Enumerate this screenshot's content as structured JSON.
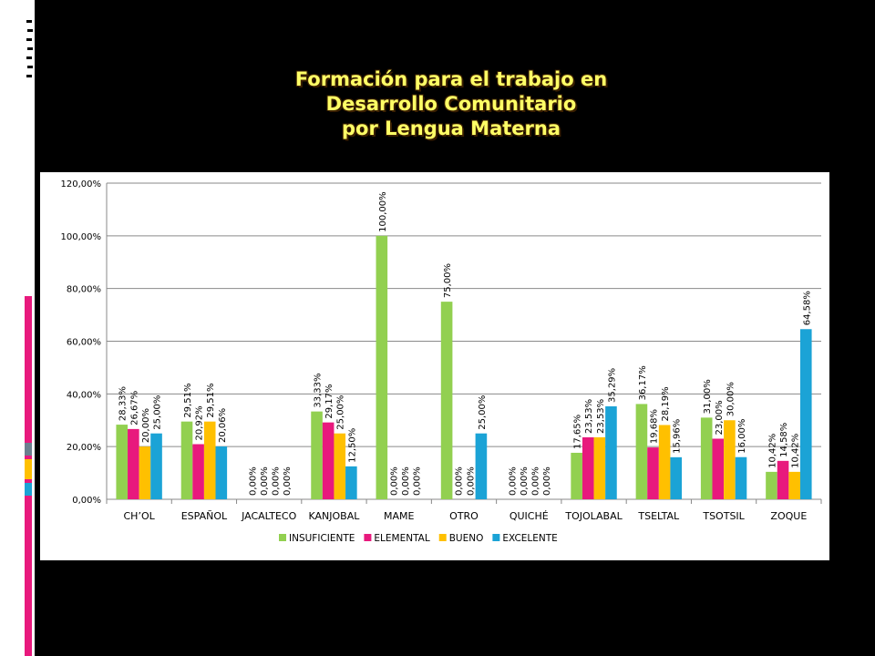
{
  "slide": {
    "title_lines": [
      "Formación para el trabajo en",
      "Desarrollo Comunitario",
      "por Lengua Materna"
    ]
  },
  "colors": {
    "background": "#000000",
    "title": "#ffff66",
    "series": [
      "#92d050",
      "#e8197d",
      "#ffc000",
      "#1ba3d6"
    ],
    "decor": [
      "#ffffff",
      "#e8197d",
      "#ffc000",
      "#1ba3d6",
      "#6b7f8f"
    ]
  },
  "chart_data": {
    "type": "bar",
    "title": "",
    "xlabel": "",
    "ylabel": "",
    "ylim": [
      0,
      120
    ],
    "y_ticks": [
      "0,00%",
      "20,00%",
      "40,00%",
      "60,00%",
      "80,00%",
      "100,00%",
      "120,00%"
    ],
    "grid": true,
    "legend_position": "bottom",
    "categories": [
      "CH’OL",
      "ESPAÑOL",
      "JACALTECO",
      "KANJOBAL",
      "MAME",
      "OTRO",
      "QUICHÉ",
      "TOJOLABAL",
      "TSELTAL",
      "TSOTSIL",
      "ZOQUE"
    ],
    "series": [
      {
        "name": "INSUFICIENTE",
        "values": [
          28.33,
          29.51,
          0,
          33.33,
          100,
          75,
          0,
          17.65,
          36.17,
          31.0,
          10.42
        ],
        "labels": [
          "28,33%",
          "29,51%",
          "0,00%",
          "33,33%",
          "100,00%",
          "75,00%",
          "0,00%",
          "17,65%",
          "36,17%",
          "31,00%",
          "10,42%"
        ]
      },
      {
        "name": "ELEMENTAL",
        "values": [
          26.67,
          20.92,
          0,
          29.17,
          0,
          0,
          0,
          23.53,
          19.68,
          23.0,
          14.58
        ],
        "labels": [
          "26,67%",
          "20,92%",
          "0,00%",
          "29,17%",
          "0,00%",
          "0,00%",
          "0,00%",
          "23,53%",
          "19,68%",
          "23,00%",
          "14,58%"
        ]
      },
      {
        "name": "BUENO",
        "values": [
          20.0,
          29.51,
          0,
          25.0,
          0,
          0,
          0,
          23.53,
          28.19,
          30.0,
          10.42
        ],
        "labels": [
          "20,00%",
          "29,51%",
          "0,00%",
          "25,00%",
          "0,00%",
          "0,00%",
          "0,00%",
          "23,53%",
          "28,19%",
          "30,00%",
          "10,42%"
        ]
      },
      {
        "name": "EXCELENTE",
        "values": [
          25.0,
          20.06,
          0,
          12.5,
          0,
          25.0,
          0,
          35.29,
          15.96,
          16.0,
          64.58
        ],
        "labels": [
          "25,00%",
          "20,06%",
          "0,00%",
          "12,50%",
          "0,00%",
          "25,00%",
          "0,00%",
          "35,29%",
          "15,96%",
          "16,00%",
          "64,58%"
        ]
      }
    ]
  }
}
